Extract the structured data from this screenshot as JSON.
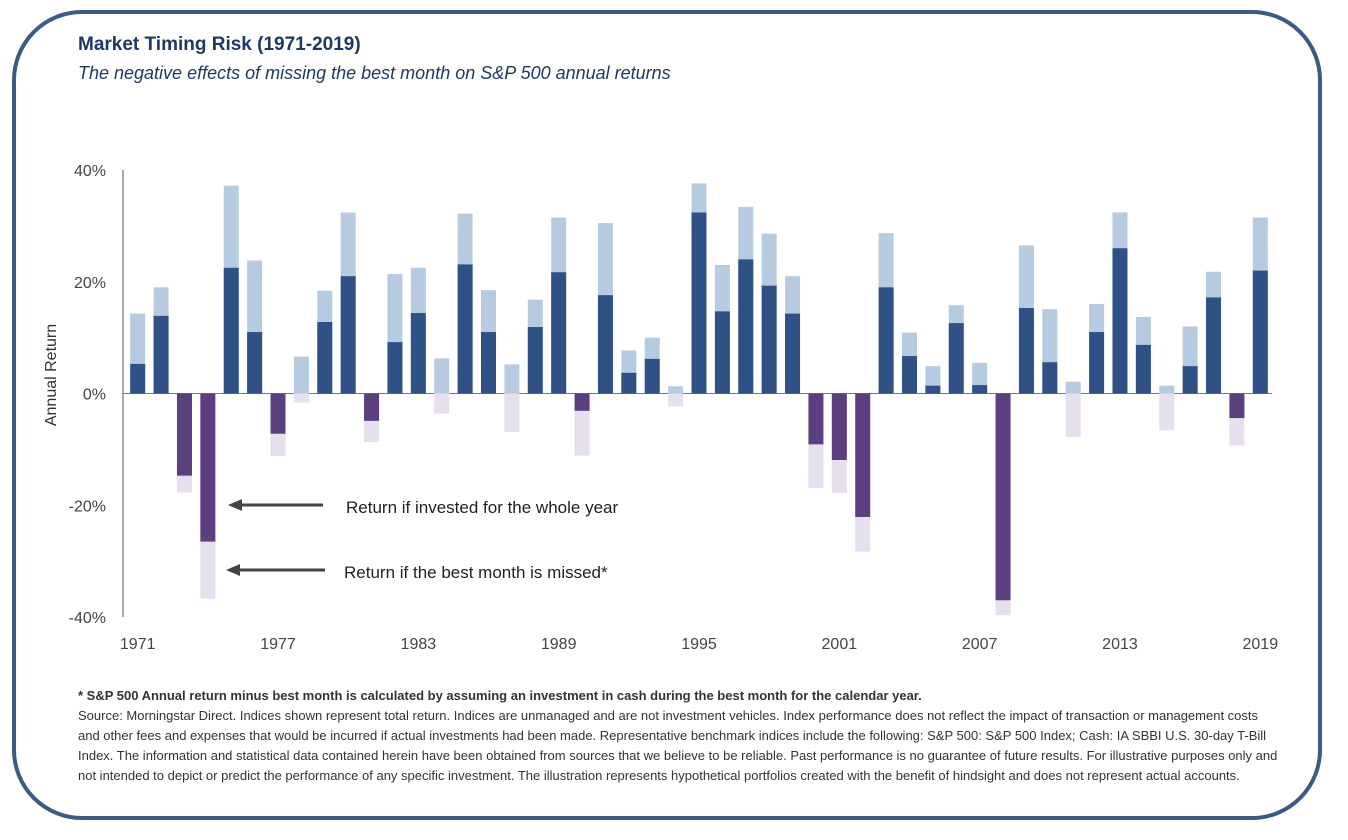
{
  "title": "Market Timing Risk (1971-2019)",
  "subtitle": "The negative effects of missing the best month on S&P 500 annual returns",
  "footnote": {
    "bold": "* S&P 500 Annual return minus best month is calculated by assuming an investment in cash during the best month for the calendar year.",
    "body": "Source: Morningstar Direct. Indices shown represent total return. Indices are unmanaged and are not investment vehicles. Index performance does not reflect the impact of transaction or management costs and other fees and expenses that would be incurred if actual investments had been made. Representative benchmark indices include the following: S&P 500: S&P 500 Index; Cash: IA SBBI U.S. 30-day T-Bill Index. The information and statistical data contained herein have been obtained from sources that we believe to be reliable. Past performance is no guarantee of future results. For illustrative purposes only and not intended to depict or predict the performance of any specific investment. The illustration represents hypothetical portfolios created with the benefit of hindsight and does not represent actual accounts."
  },
  "colors": {
    "positive_whole_year": "#b6cbe0",
    "positive_missed": "#2f5186",
    "negative_whole_year": "#5b3f7e",
    "negative_missed": "#e6dfee",
    "axis": "#555555",
    "frame": "#3b5a84"
  },
  "chart_data": {
    "type": "bar",
    "title": "",
    "xlabel": "",
    "ylabel": "Annual Return",
    "ylim": [
      -40,
      40
    ],
    "yticks": [
      40,
      20,
      0,
      -20,
      -40
    ],
    "ytick_labels": [
      "40%",
      "20%",
      "0%",
      "-20%",
      "-40%"
    ],
    "xtick_labels": [
      "1971",
      "1977",
      "1983",
      "1989",
      "1995",
      "2001",
      "2007",
      "2013",
      "2019"
    ],
    "categories": [
      "1971",
      "1972",
      "1973",
      "1974",
      "1975",
      "1976",
      "1977",
      "1978",
      "1979",
      "1980",
      "1981",
      "1982",
      "1983",
      "1984",
      "1985",
      "1986",
      "1987",
      "1988",
      "1989",
      "1990",
      "1991",
      "1992",
      "1993",
      "1994",
      "1995",
      "1996",
      "1997",
      "1998",
      "1999",
      "2000",
      "2001",
      "2002",
      "2003",
      "2004",
      "2005",
      "2006",
      "2007",
      "2008",
      "2009",
      "2010",
      "2011",
      "2012",
      "2013",
      "2014",
      "2015",
      "2016",
      "2017",
      "2018",
      "2019"
    ],
    "series": [
      {
        "name": "Return if invested for the whole year",
        "values": [
          14.3,
          19.0,
          -14.7,
          -26.5,
          37.2,
          23.8,
          -7.2,
          6.6,
          18.4,
          32.4,
          -4.9,
          21.4,
          22.5,
          6.3,
          32.2,
          18.5,
          5.2,
          16.8,
          31.5,
          -3.1,
          30.5,
          7.7,
          10.0,
          1.3,
          37.6,
          23.0,
          33.4,
          28.6,
          21.0,
          -9.1,
          -11.9,
          -22.1,
          28.7,
          10.9,
          4.9,
          15.8,
          5.5,
          -37.0,
          26.5,
          15.1,
          2.1,
          16.0,
          32.4,
          13.7,
          1.4,
          12.0,
          21.8,
          -4.4,
          31.5
        ]
      },
      {
        "name": "Return if the best month is missed*",
        "values": [
          5.3,
          13.9,
          -17.7,
          -36.7,
          22.5,
          11.0,
          -11.2,
          -1.6,
          12.8,
          21.0,
          -8.7,
          9.2,
          14.4,
          -3.6,
          23.1,
          11.0,
          -6.9,
          11.9,
          21.7,
          -11.1,
          17.6,
          3.7,
          6.2,
          -2.3,
          32.4,
          14.7,
          24.0,
          19.3,
          14.3,
          -16.9,
          -17.8,
          -28.3,
          19.0,
          6.7,
          1.4,
          12.6,
          1.5,
          -39.7,
          15.3,
          5.6,
          -7.8,
          11.0,
          26.0,
          8.7,
          -6.6,
          4.9,
          17.2,
          -9.3,
          22.0
        ]
      }
    ],
    "annotations": [
      "Return if invested for the whole year",
      "Return if the best month is missed*"
    ]
  }
}
